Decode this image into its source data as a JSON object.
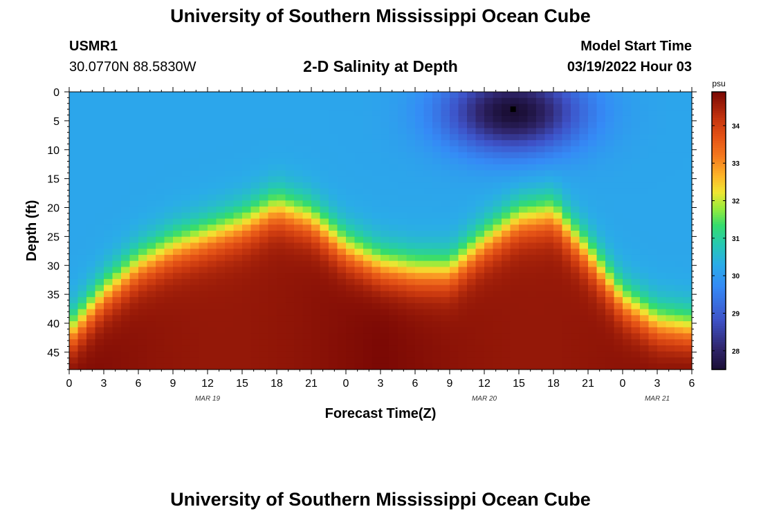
{
  "header": {
    "title": "University of Southern Mississippi Ocean Cube",
    "station_id": "USMR1",
    "coordinates": "30.0770N  88.5830W",
    "subtitle": "2-D Salinity at Depth",
    "model_start_label": "Model Start Time",
    "model_start_value": "03/19/2022 Hour 03"
  },
  "footer": {
    "title": "University of Southern Mississippi Ocean Cube"
  },
  "chart_data": {
    "type": "heatmap",
    "title": "2-D Salinity at Depth",
    "xlabel": "Forecast Time(Z)",
    "ylabel": "Depth (ft)",
    "x_range_hours": [
      0,
      54
    ],
    "x_tick_labels": [
      "0",
      "3",
      "6",
      "9",
      "12",
      "15",
      "18",
      "21",
      "0",
      "3",
      "6",
      "9",
      "12",
      "15",
      "18",
      "21",
      "0",
      "3",
      "6"
    ],
    "date_labels": [
      {
        "text": "MAR 19",
        "hour": 12
      },
      {
        "text": "MAR 20",
        "hour": 36
      },
      {
        "text": "MAR 21",
        "hour": 51
      }
    ],
    "y_range_ft": [
      0,
      48
    ],
    "y_ticks": [
      0,
      5,
      10,
      15,
      20,
      25,
      30,
      35,
      40,
      45
    ],
    "colorbar": {
      "label": "psu",
      "range": [
        27.5,
        34.9
      ],
      "ticks": [
        28,
        29,
        30,
        31,
        32,
        33,
        34
      ]
    },
    "marker": {
      "hour": 38.5,
      "depth_ft": 3
    },
    "halocline_depth_ft": {
      "hours": [
        0,
        3,
        6,
        9,
        12,
        15,
        18,
        21,
        24,
        27,
        30,
        33,
        36,
        39,
        42,
        45,
        48,
        51,
        54
      ],
      "values": [
        42,
        35,
        30,
        27,
        25,
        23,
        20,
        22,
        27,
        30,
        31,
        31,
        26,
        22,
        21,
        28,
        36,
        40,
        41
      ]
    },
    "low_salinity_cell": {
      "center_hour": 38.5,
      "center_depth_ft": 3.5,
      "min_psu": 27.5
    },
    "surface_psu": 30.2,
    "bottom_max_psu": 34.9
  }
}
